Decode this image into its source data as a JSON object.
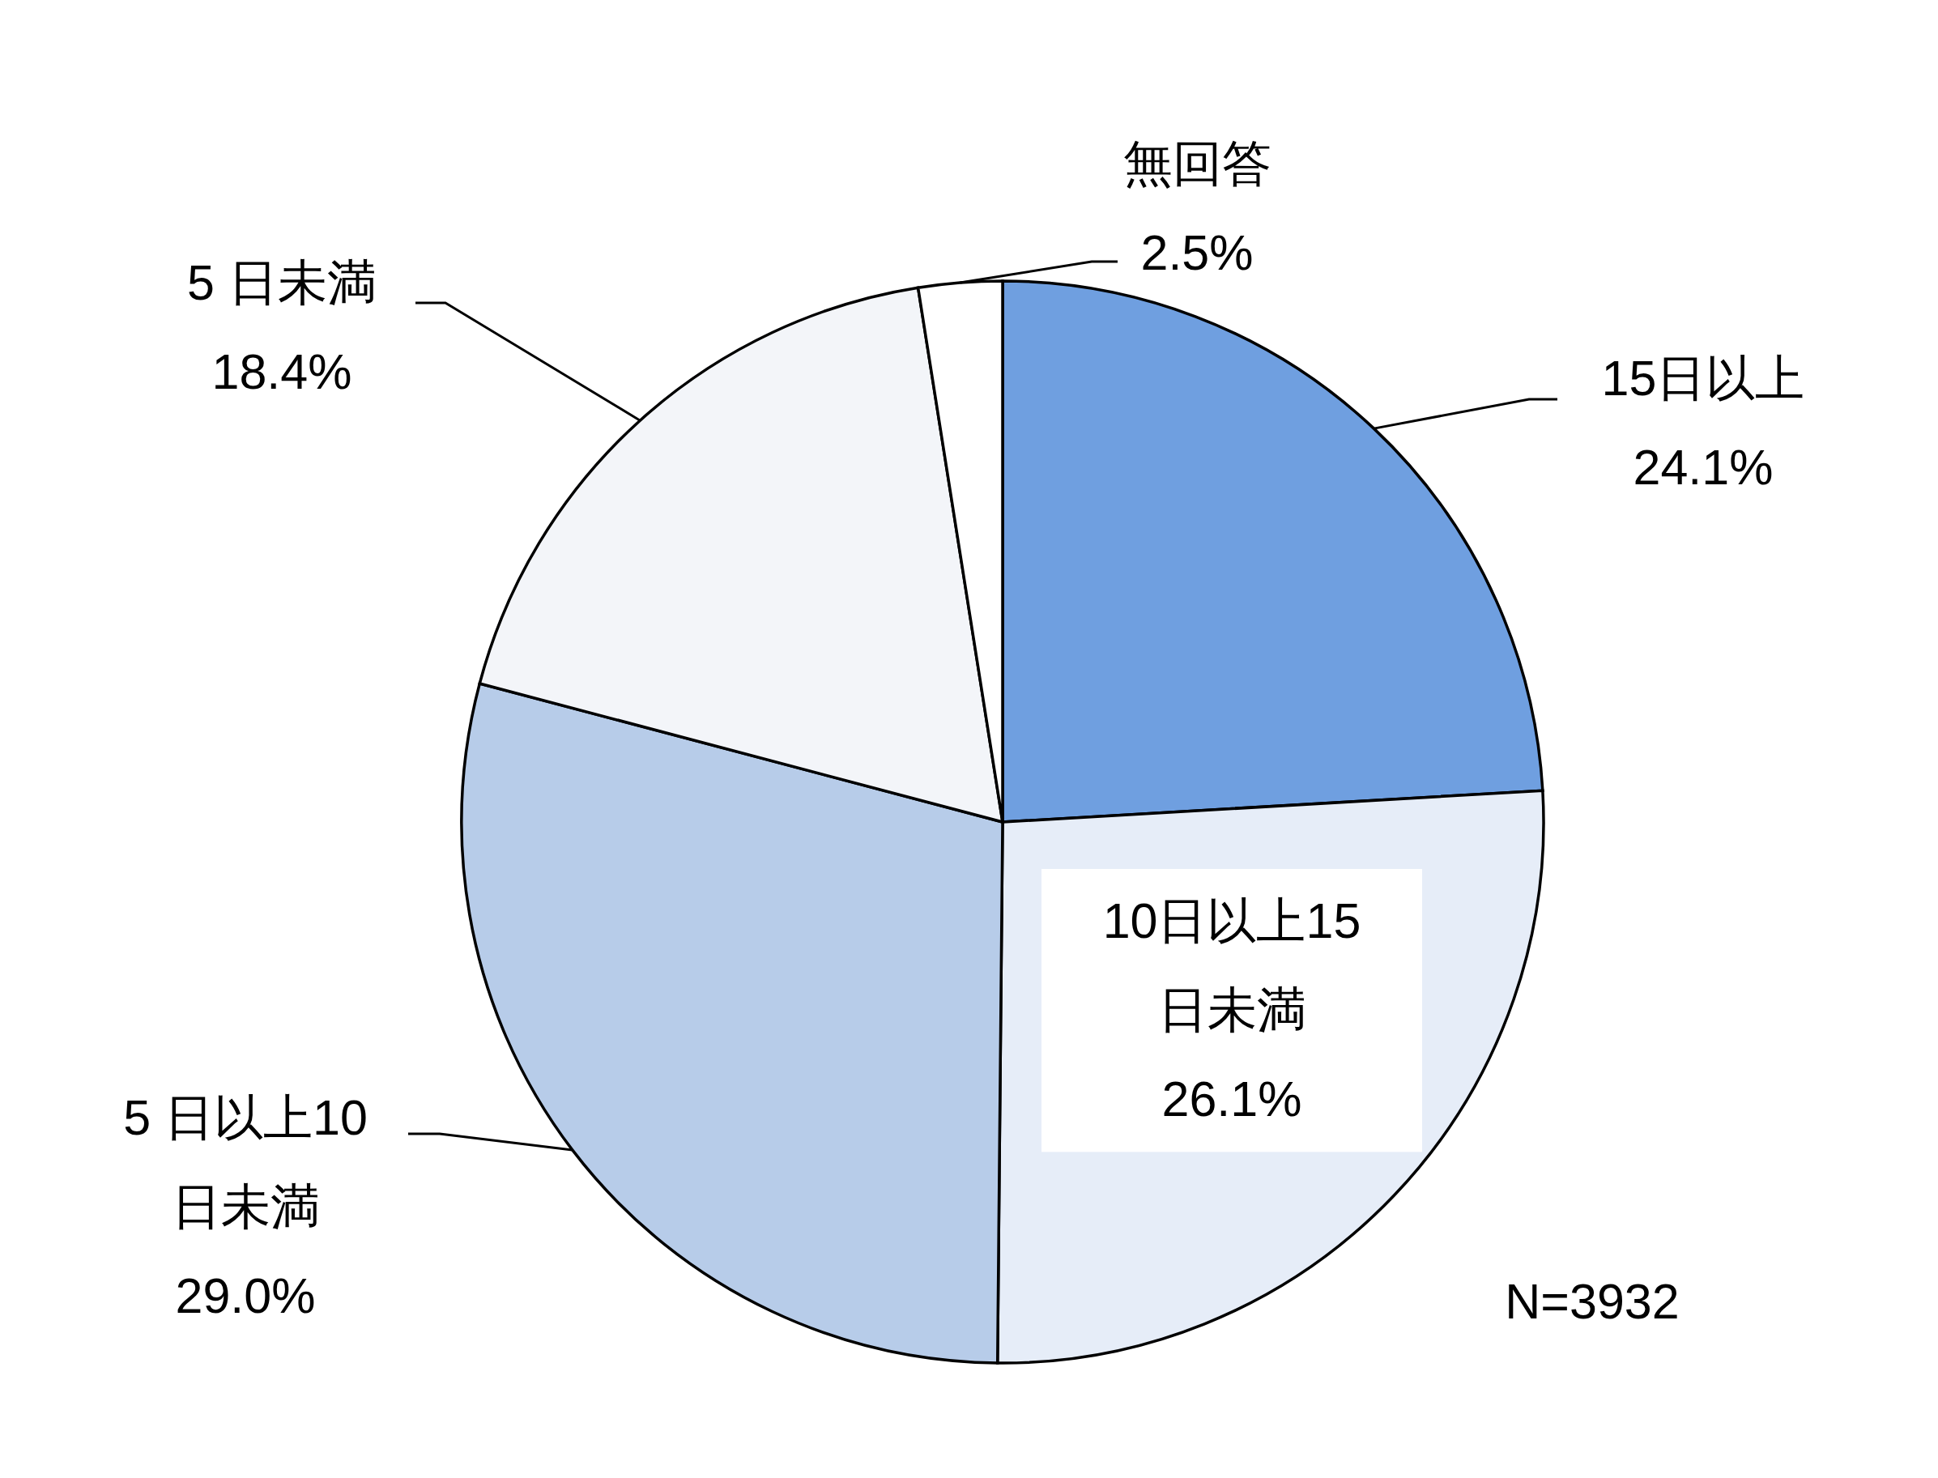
{
  "chart_data": {
    "type": "pie",
    "categories": [
      "15日以上",
      "10日以上15日未満",
      "5 日以上10日未満",
      "5 日未満",
      "無回答"
    ],
    "values": [
      24.1,
      26.1,
      29.0,
      18.4,
      2.5
    ],
    "value_labels": [
      "24.1%",
      "26.1%",
      "29.0%",
      "18.4%",
      "2.5%"
    ],
    "colors": [
      "#6f9fe0",
      "#e6edf8",
      "#b7cce9",
      "#f3f5f9",
      "#ffffff"
    ],
    "annotations": [
      "N=3932"
    ]
  }
}
